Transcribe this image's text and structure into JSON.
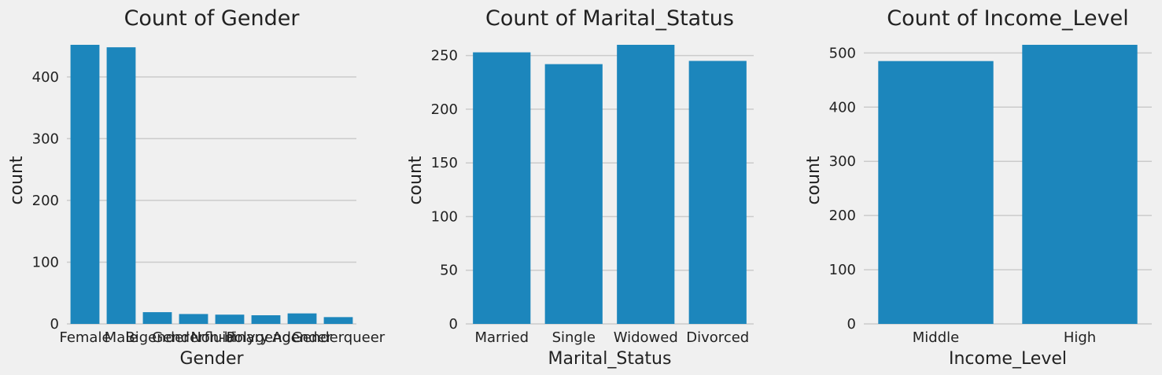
{
  "chart_data": [
    {
      "type": "bar",
      "title": "Count of Gender",
      "xlabel": "Gender",
      "ylabel": "count",
      "categories": [
        "Female",
        "Male",
        "Bigender",
        "Genderfluid",
        "Non-binary",
        "Polygender",
        "Agender",
        "Genderqueer"
      ],
      "values": [
        452,
        448,
        19,
        16,
        15,
        14,
        17,
        11
      ],
      "ylim": [
        0,
        452
      ],
      "yticks": [
        0,
        100,
        200,
        300,
        400
      ],
      "grid": true,
      "color": "#1c86bc"
    },
    {
      "type": "bar",
      "title": "Count of Marital_Status",
      "xlabel": "Marital_Status",
      "ylabel": "count",
      "categories": [
        "Married",
        "Single",
        "Widowed",
        "Divorced"
      ],
      "values": [
        253,
        242,
        260,
        245
      ],
      "ylim": [
        0,
        260
      ],
      "yticks": [
        0,
        50,
        100,
        150,
        200,
        250
      ],
      "grid": true,
      "color": "#1c86bc"
    },
    {
      "type": "bar",
      "title": "Count of Income_Level",
      "xlabel": "Income_Level",
      "ylabel": "count",
      "categories": [
        "Middle",
        "High"
      ],
      "values": [
        485,
        515
      ],
      "ylim": [
        0,
        515
      ],
      "yticks": [
        0,
        100,
        200,
        300,
        400,
        500
      ],
      "grid": true,
      "color": "#1c86bc"
    }
  ]
}
